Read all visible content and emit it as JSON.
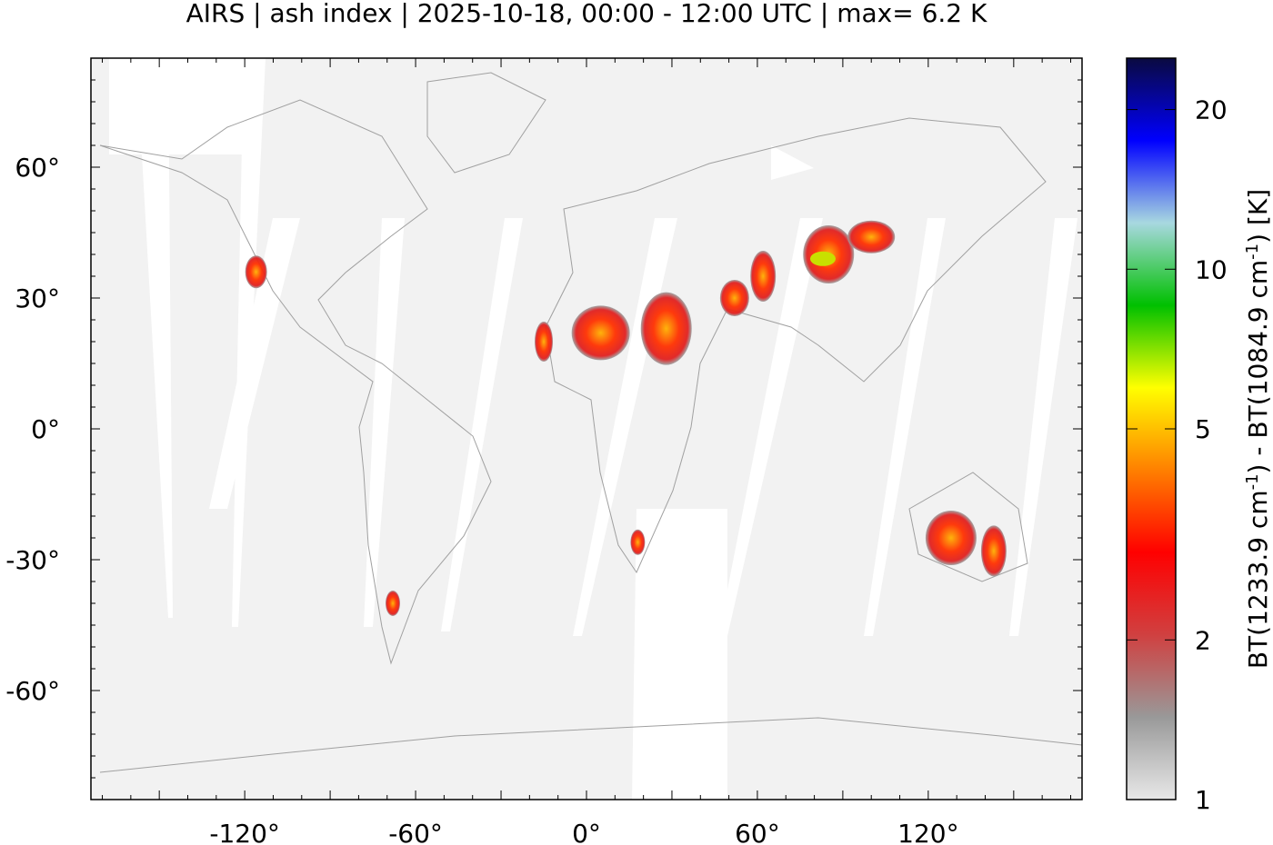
{
  "title": "AIRS | ash index | 2025-10-18, 00:00 - 12:00 UTC | max= 6.2 K",
  "chart_data": {
    "type": "heatmap",
    "title": "AIRS | ash index | 2025-10-18, 00:00 - 12:00 UTC | max= 6.2 K",
    "xlabel": "",
    "ylabel": "",
    "xlim": [
      -174,
      174
    ],
    "ylim": [
      -85,
      85
    ],
    "x_ticks": [
      -120,
      -60,
      0,
      60,
      120
    ],
    "x_tick_labels": [
      "-120°",
      "-60°",
      "0°",
      "60°",
      "120°"
    ],
    "y_ticks": [
      60,
      30,
      0,
      -30,
      -60
    ],
    "y_tick_labels": [
      "60°",
      "30°",
      "0°",
      "-30°",
      "-60°"
    ],
    "colorbar": {
      "label": "BT(1233.9 cm-1) - BT(1084.9 cm-1) [K]",
      "label_parts": [
        "BT(1233.9 cm",
        "-1",
        ") - BT(1084.9 cm",
        "-1",
        ") [K]"
      ],
      "scale": "log",
      "range": [
        1,
        25
      ],
      "ticks": [
        1,
        2,
        5,
        10,
        20
      ],
      "tick_labels": [
        "1",
        "2",
        "5",
        "10",
        "20"
      ],
      "colors": [
        "#e8e8e8",
        "#999999",
        "#d04040",
        "#ff0000",
        "#ff8000",
        "#ffff00",
        "#00c000",
        "#a8d8e0",
        "#0000ff",
        "#0a0a40"
      ]
    },
    "background_color": "#f2f2f2",
    "coastline_color": "#a0a0a0",
    "max_value": 6.2
  }
}
